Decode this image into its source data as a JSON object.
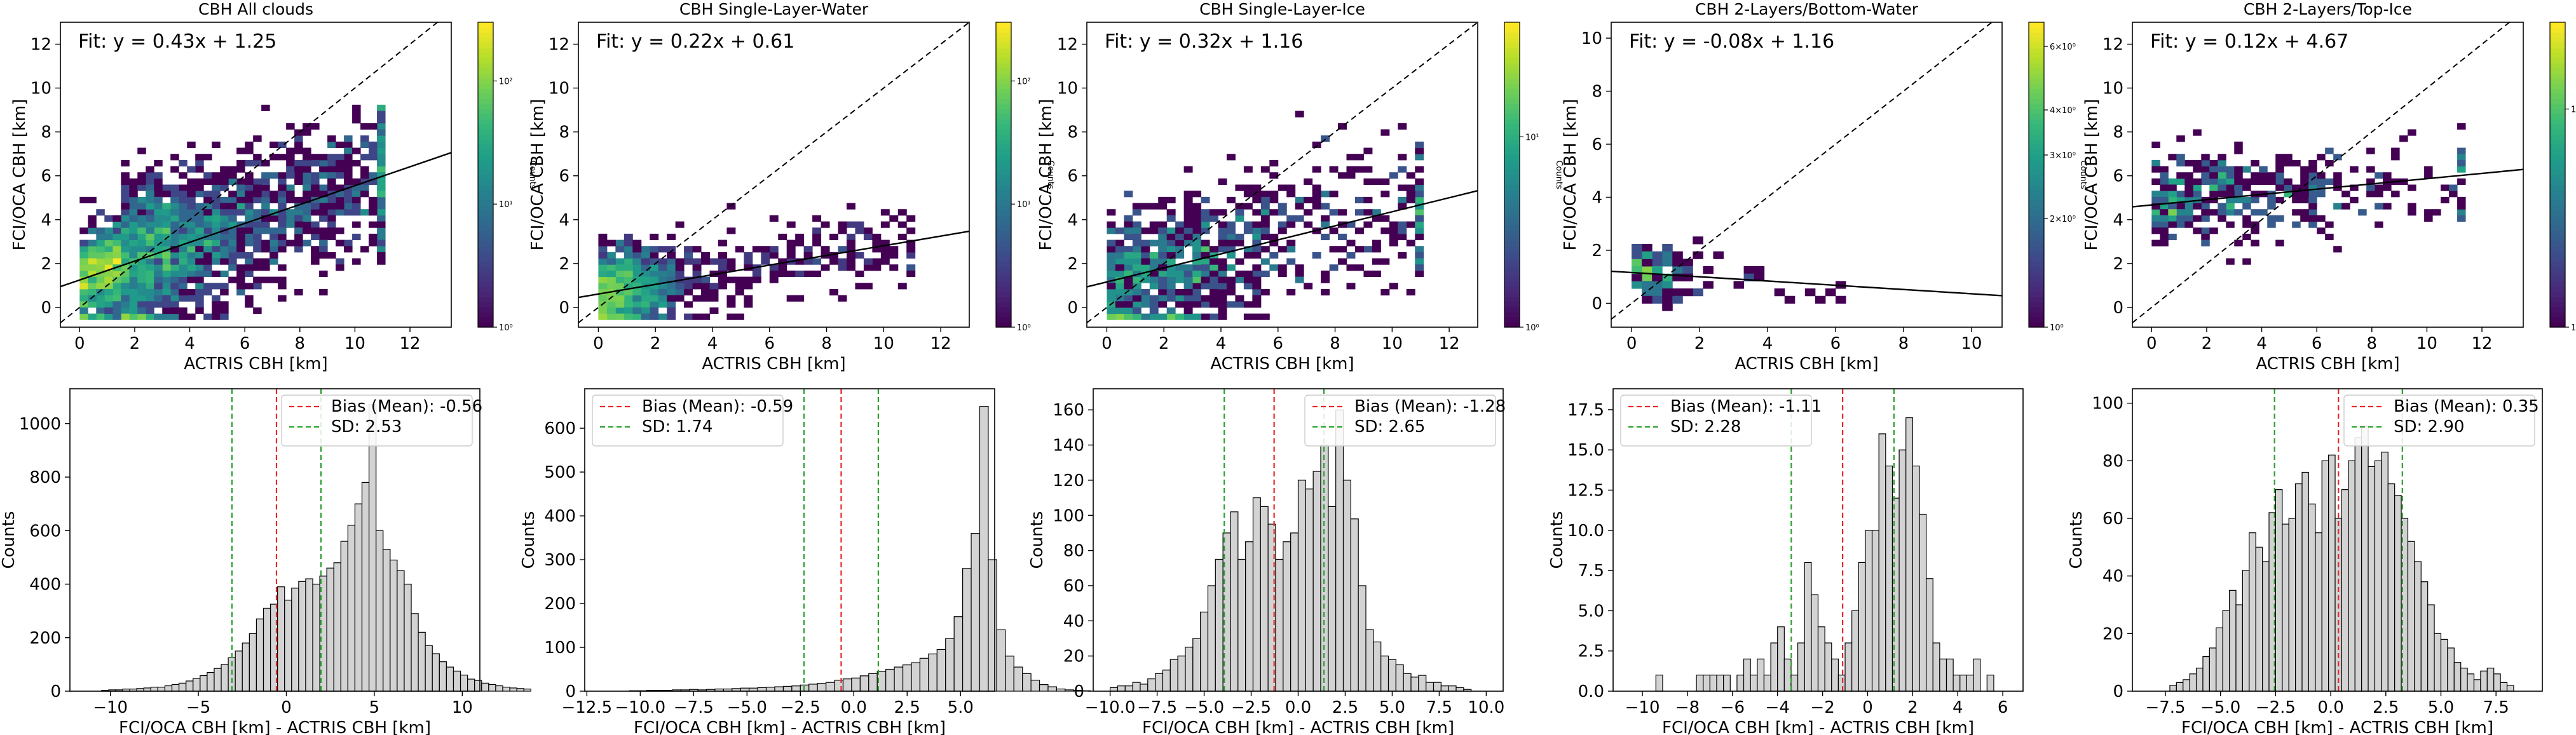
{
  "chart_data": [
    {
      "type": "heatmap",
      "title": "CBH All clouds",
      "xlabel": "ACTRIS CBH [km]",
      "ylabel": "FCI/OCA CBH [km]",
      "xlim": [
        -0.7,
        13.5
      ],
      "ylim": [
        -0.9,
        13.0
      ],
      "xticks": [
        0,
        2,
        4,
        6,
        8,
        10,
        12
      ],
      "yticks": [
        0,
        2,
        4,
        6,
        8,
        10,
        12
      ],
      "fit_label": "Fit: y = 0.43x + 1.25",
      "fit": {
        "slope": 0.43,
        "intercept": 1.25
      },
      "one_to_one": true,
      "density": {
        "x_range": [
          0,
          11
        ],
        "y_range": [
          -0.3,
          9.2
        ],
        "max_counts": 300
      },
      "colorbar": {
        "label": "Counts",
        "scale": "log",
        "ticks": [
          "10⁰",
          "10¹",
          "10²"
        ],
        "tick_values": [
          1,
          10,
          100
        ],
        "range": [
          1,
          300
        ]
      }
    },
    {
      "type": "heatmap",
      "title": "CBH Single-Layer-Water",
      "xlabel": "ACTRIS CBH [km]",
      "ylabel": "FCI/OCA CBH [km]",
      "xlim": [
        -0.7,
        13.0
      ],
      "ylim": [
        -0.9,
        13.0
      ],
      "xticks": [
        0,
        2,
        4,
        6,
        8,
        10,
        12
      ],
      "yticks": [
        0,
        2,
        4,
        6,
        8,
        10,
        12
      ],
      "fit_label": "Fit: y = 0.22x + 0.61",
      "fit": {
        "slope": 0.22,
        "intercept": 0.61
      },
      "one_to_one": true,
      "density": {
        "x_range": [
          0,
          11
        ],
        "y_range": [
          -0.3,
          4.6
        ],
        "max_counts": 300
      },
      "colorbar": {
        "label": "Counts",
        "scale": "log",
        "ticks": [
          "10⁰",
          "10¹",
          "10²"
        ],
        "tick_values": [
          1,
          10,
          100
        ],
        "range": [
          1,
          300
        ]
      }
    },
    {
      "type": "heatmap",
      "title": "CBH Single-Layer-Ice",
      "xlabel": "ACTRIS CBH [km]",
      "ylabel": "FCI/OCA CBH [km]",
      "xlim": [
        -0.7,
        13.0
      ],
      "ylim": [
        -0.9,
        13.0
      ],
      "xticks": [
        0,
        2,
        4,
        6,
        8,
        10,
        12
      ],
      "yticks": [
        0,
        2,
        4,
        6,
        8,
        10,
        12
      ],
      "fit_label": "Fit: y = 0.32x + 1.16",
      "fit": {
        "slope": 0.32,
        "intercept": 1.16
      },
      "one_to_one": true,
      "density": {
        "x_range": [
          0,
          11
        ],
        "y_range": [
          -0.3,
          8.7
        ],
        "max_counts": 40
      },
      "colorbar": {
        "label": "Counts",
        "scale": "log",
        "ticks": [
          "10⁰",
          "10¹"
        ],
        "tick_values": [
          1,
          10
        ],
        "range": [
          1,
          40
        ]
      }
    },
    {
      "type": "heatmap",
      "title": "CBH 2-Layers/Bottom-Water",
      "xlabel": "ACTRIS CBH [km]",
      "ylabel": "FCI/OCA CBH [km]",
      "xlim": [
        -0.6,
        10.9
      ],
      "ylim": [
        -0.9,
        10.6
      ],
      "xticks": [
        0,
        2,
        4,
        6,
        8,
        10
      ],
      "yticks": [
        0,
        2,
        4,
        6,
        8,
        10
      ],
      "fit_label": "Fit: y = -0.08x + 1.16",
      "fit": {
        "slope": -0.08,
        "intercept": 1.16
      },
      "one_to_one": true,
      "density": {
        "x_range": [
          0,
          7.6
        ],
        "y_range": [
          -0.3,
          3.2
        ],
        "max_counts": 7
      },
      "colorbar": {
        "label": "Counts",
        "scale": "log",
        "ticks": [
          "10⁰",
          "2×10⁰",
          "3×10⁰",
          "4×10⁰",
          "6×10⁰"
        ],
        "tick_values": [
          1,
          2,
          3,
          4,
          6
        ],
        "range": [
          1,
          7
        ]
      }
    },
    {
      "type": "heatmap",
      "title": "CBH 2-Layers/Top-Ice",
      "xlabel": "ACTRIS CBH [km]",
      "ylabel": "FCI/OCA CBH [km]",
      "xlim": [
        -0.7,
        13.5
      ],
      "ylim": [
        -0.9,
        13.0
      ],
      "xticks": [
        0,
        2,
        4,
        6,
        8,
        10,
        12
      ],
      "yticks": [
        0,
        2,
        4,
        6,
        8,
        10,
        12
      ],
      "fit_label": "Fit: y = 0.12x + 4.67",
      "fit": {
        "slope": 0.12,
        "intercept": 4.67
      },
      "one_to_one": true,
      "density": {
        "x_range": [
          0,
          11.2
        ],
        "y_range": [
          2.2,
          8.3
        ],
        "max_counts": 25
      },
      "colorbar": {
        "label": "Counts",
        "scale": "log",
        "ticks": [
          "10⁰",
          "10¹"
        ],
        "tick_values": [
          1,
          10
        ],
        "range": [
          1,
          25
        ]
      }
    },
    {
      "type": "bar",
      "subtype": "histogram",
      "xlabel": "FCI/OCA CBH [km] - ACTRIS CBH [km]",
      "ylabel": "Counts",
      "xlim": [
        -12.3,
        11.0
      ],
      "ylim": [
        0,
        1130
      ],
      "xticks": [
        -10,
        -5,
        0,
        5,
        10
      ],
      "yticks": [
        0,
        200,
        400,
        600,
        800,
        1000
      ],
      "bin_edges_start": -10.5,
      "bin_width": 0.4,
      "counts": [
        3,
        5,
        5,
        8,
        8,
        10,
        12,
        15,
        15,
        20,
        25,
        30,
        38,
        48,
        58,
        70,
        85,
        100,
        125,
        150,
        180,
        215,
        270,
        310,
        325,
        390,
        340,
        385,
        410,
        420,
        400,
        430,
        460,
        480,
        560,
        620,
        700,
        780,
        1070,
        600,
        530,
        490,
        450,
        400,
        290,
        220,
        170,
        140,
        110,
        90,
        75,
        60,
        45,
        40,
        30,
        25,
        20,
        15,
        12,
        10,
        8
      ],
      "bias": -0.56,
      "sd": 2.53,
      "sd_lines": [
        -3.09,
        1.97
      ],
      "legend": [
        "Bias (Mean): -0.56",
        "SD: 2.53"
      ],
      "legend_position": "upper right"
    },
    {
      "type": "bar",
      "subtype": "histogram",
      "xlabel": "FCI/OCA CBH [km] - ACTRIS CBH [km]",
      "ylabel": "Counts",
      "xlim": [
        -12.6,
        6.6
      ],
      "ylim": [
        0,
        690
      ],
      "xticks": [
        -12.5,
        -10.0,
        -7.5,
        -5.0,
        -2.5,
        0.0,
        2.5,
        5.0
      ],
      "xtick_labels": [
        "−12.5",
        "−10.0",
        "−7.5",
        "−5.0",
        "−2.5",
        "0.0",
        "2.5",
        "5.0"
      ],
      "yticks": [
        0,
        100,
        200,
        300,
        400,
        500,
        600
      ],
      "bin_edges_start": -10.5,
      "bin_width": 0.4,
      "counts": [
        1,
        1,
        2,
        2,
        2,
        3,
        3,
        4,
        3,
        4,
        5,
        5,
        6,
        7,
        7,
        8,
        9,
        10,
        11,
        12,
        14,
        16,
        18,
        20,
        25,
        28,
        30,
        35,
        40,
        45,
        50,
        55,
        60,
        65,
        75,
        85,
        95,
        120,
        170,
        280,
        360,
        650,
        300,
        140,
        80,
        55,
        40,
        25,
        15,
        10,
        5,
        3,
        2,
        1
      ],
      "bias": -0.59,
      "sd": 1.74,
      "sd_lines": [
        -2.33,
        1.15
      ],
      "legend": [
        "Bias (Mean): -0.59",
        "SD: 1.74"
      ],
      "legend_position": "upper left"
    },
    {
      "type": "bar",
      "subtype": "histogram",
      "xlabel": "FCI/OCA CBH [km] - ACTRIS CBH [km]",
      "ylabel": "Counts",
      "xlim": [
        -10.9,
        10.9
      ],
      "ylim": [
        0,
        172
      ],
      "xticks": [
        -10.0,
        -7.5,
        -5.0,
        -2.5,
        0.0,
        2.5,
        5.0,
        7.5,
        10.0
      ],
      "xtick_labels": [
        "−10.0",
        "−7.5",
        "−5.0",
        "−2.5",
        "0.0",
        "2.5",
        "5.0",
        "7.5",
        "10.0"
      ],
      "yticks": [
        0,
        20,
        40,
        60,
        80,
        100,
        120,
        140,
        160
      ],
      "bin_edges_start": -10.0,
      "bin_width": 0.4,
      "counts": [
        2,
        3,
        3,
        5,
        4,
        7,
        10,
        12,
        18,
        20,
        25,
        30,
        45,
        60,
        75,
        90,
        102,
        75,
        85,
        110,
        105,
        95,
        75,
        85,
        90,
        120,
        115,
        125,
        140,
        105,
        160,
        120,
        98,
        60,
        35,
        28,
        20,
        18,
        15,
        10,
        8,
        9,
        5,
        5,
        3,
        3,
        2,
        1
      ],
      "bias": -1.28,
      "sd": 2.65,
      "sd_lines": [
        -3.93,
        1.37
      ],
      "legend": [
        "Bias (Mean): -1.28",
        "SD: 2.65"
      ],
      "legend_position": "upper right"
    },
    {
      "type": "bar",
      "subtype": "histogram",
      "xlabel": "FCI/OCA CBH [km] - ACTRIS CBH [km]",
      "ylabel": "Counts",
      "xlim": [
        -11.3,
        6.9
      ],
      "ylim": [
        0,
        18.8
      ],
      "xticks": [
        -10,
        -8,
        -6,
        -4,
        -2,
        0,
        2,
        4,
        6
      ],
      "xtick_labels": [
        "−10",
        "−8",
        "−6",
        "−4",
        "−2",
        "0",
        "2",
        "4",
        "6"
      ],
      "yticks": [
        0,
        2.5,
        5.0,
        7.5,
        10.0,
        12.5,
        15.0,
        17.5
      ],
      "ytick_labels": [
        "0.0",
        "2.5",
        "5.0",
        "7.5",
        "10.0",
        "12.5",
        "15.0",
        "17.5"
      ],
      "bin_edges_start": -9.4,
      "bin_width": 0.3,
      "counts": [
        1,
        0,
        0,
        0,
        0,
        0,
        1,
        1,
        1,
        1,
        1,
        0,
        1,
        2,
        1,
        2,
        1,
        3,
        4,
        2,
        1,
        3,
        8,
        6,
        4,
        3,
        2,
        1,
        3,
        5,
        8,
        10,
        10,
        16,
        14,
        12,
        15,
        17,
        14,
        11,
        7,
        3,
        2,
        2,
        1,
        1,
        1,
        2,
        0,
        1
      ],
      "bias": -1.11,
      "sd": 2.28,
      "sd_lines": [
        -3.39,
        1.17
      ],
      "legend": [
        "Bias (Mean): -1.11",
        "SD: 2.28"
      ],
      "legend_position": "upper left"
    },
    {
      "type": "bar",
      "subtype": "histogram",
      "xlabel": "FCI/OCA CBH [km] - ACTRIS CBH [km]",
      "ylabel": "Counts",
      "xlim": [
        -9.0,
        9.6
      ],
      "ylim": [
        0,
        105
      ],
      "xticks": [
        -7.5,
        -5.0,
        -2.5,
        0.0,
        2.5,
        5.0,
        7.5
      ],
      "xtick_labels": [
        "−7.5",
        "−5.0",
        "−2.5",
        "0.0",
        "2.5",
        "5.0",
        "7.5"
      ],
      "yticks": [
        0,
        20,
        40,
        60,
        80,
        100
      ],
      "bin_edges_start": -7.3,
      "bin_width": 0.3,
      "counts": [
        2,
        3,
        4,
        6,
        8,
        12,
        15,
        22,
        28,
        35,
        30,
        42,
        55,
        50,
        45,
        62,
        70,
        58,
        60,
        72,
        76,
        65,
        55,
        80,
        82,
        60,
        70,
        80,
        88,
        92,
        78,
        80,
        83,
        72,
        68,
        60,
        52,
        45,
        38,
        30,
        20,
        18,
        15,
        10,
        8,
        6,
        4,
        7,
        8,
        6,
        3,
        2
      ],
      "bias": 0.35,
      "sd": 2.9,
      "sd_lines": [
        -2.55,
        3.25
      ],
      "legend": [
        "Bias (Mean): 0.35",
        "SD: 2.90"
      ],
      "legend_position": "upper right"
    }
  ]
}
